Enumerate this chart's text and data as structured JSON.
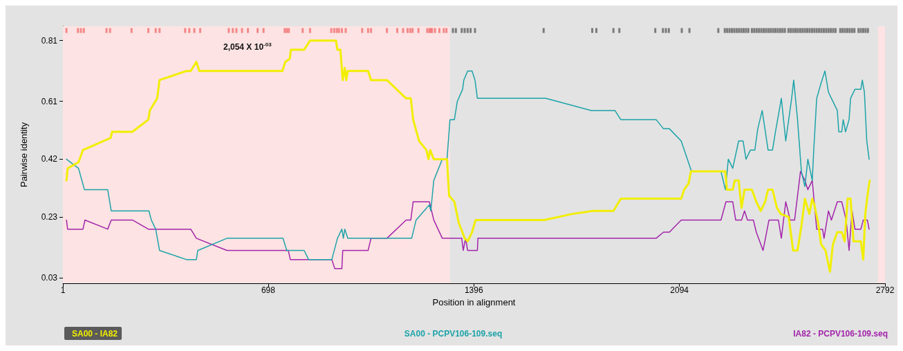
{
  "chart_data": {
    "type": "line",
    "xlabel": "Position in alignment",
    "ylabel": "Pairwise identity",
    "xlim": [
      1,
      2792
    ],
    "xticks": [
      1,
      698,
      1396,
      2094,
      2792
    ],
    "ylim": [
      0.012,
      0.857
    ],
    "yticks": [
      0.03,
      0.23,
      0.42,
      0.61,
      0.81
    ],
    "grid": false,
    "legend": "bottom",
    "line_style": "solid",
    "marker": "none",
    "annotations": [
      "2,054 X 10$^{-03}$"
    ],
    "bands": [
      {
        "axis": "x",
        "from": 1,
        "to": 1315,
        "color": "#fde3e3"
      },
      {
        "axis": "x",
        "from": 2768,
        "to": 2792,
        "color": "#fde3e3"
      }
    ],
    "series": [
      {
        "name": "SA00 - IA82",
        "color": "#f2ee00",
        "x": [
          13,
          17,
          54,
          69,
          163,
          168,
          237,
          291,
          296,
          321,
          329,
          420,
          435,
          454,
          464,
          746,
          756,
          771,
          775,
          820,
          840,
          928,
          933,
          943,
          951,
          958,
          963,
          968,
          1037,
          1047,
          1101,
          1166,
          1182,
          1190,
          1210,
          1235,
          1242,
          1248,
          1260,
          1305,
          1312,
          1330,
          1345,
          1365,
          1375,
          1390,
          1402,
          1635,
          1730,
          1800,
          1870,
          1895,
          2100,
          2110,
          2125,
          2133,
          2250,
          2255,
          2275,
          2282,
          2295,
          2305,
          2315,
          2325,
          2340,
          2355,
          2370,
          2385,
          2395,
          2410,
          2425,
          2438,
          2465,
          2480,
          2495,
          2508,
          2520,
          2535,
          2545,
          2552,
          2565,
          2575,
          2590,
          2605,
          2615,
          2630,
          2645,
          2655,
          2665,
          2675,
          2685,
          2710,
          2718,
          2725,
          2735,
          2740
        ],
        "values": [
          0.35,
          0.39,
          0.41,
          0.45,
          0.49,
          0.51,
          0.51,
          0.55,
          0.58,
          0.62,
          0.68,
          0.71,
          0.71,
          0.74,
          0.71,
          0.71,
          0.74,
          0.75,
          0.78,
          0.78,
          0.81,
          0.81,
          0.78,
          0.78,
          0.68,
          0.72,
          0.68,
          0.71,
          0.71,
          0.68,
          0.68,
          0.62,
          0.62,
          0.55,
          0.48,
          0.45,
          0.42,
          0.45,
          0.42,
          0.42,
          0.3,
          0.28,
          0.21,
          0.16,
          0.15,
          0.18,
          0.22,
          0.22,
          0.24,
          0.25,
          0.25,
          0.29,
          0.29,
          0.32,
          0.34,
          0.38,
          0.38,
          0.32,
          0.32,
          0.35,
          0.35,
          0.26,
          0.32,
          0.32,
          0.32,
          0.28,
          0.25,
          0.28,
          0.32,
          0.32,
          0.26,
          0.24,
          0.23,
          0.12,
          0.12,
          0.2,
          0.29,
          0.24,
          0.29,
          0.27,
          0.21,
          0.14,
          0.12,
          0.05,
          0.14,
          0.18,
          0.18,
          0.15,
          0.29,
          0.29,
          0.15,
          0.15,
          0.09,
          0.24,
          0.32,
          0.35
        ]
      },
      {
        "name": "SA00 - PCPV106-109.seq",
        "color": "#1ba3a8",
        "x": [
          13,
          54,
          74,
          153,
          165,
          293,
          301,
          316,
          329,
          420,
          454,
          459,
          558,
          748,
          761,
          820,
          835,
          914,
          933,
          948,
          953,
          958,
          968,
          1185,
          1200,
          1245,
          1250,
          1260,
          1289,
          1305,
          1315,
          1330,
          1340,
          1358,
          1362,
          1375,
          1390,
          1400,
          1408,
          1640,
          1795,
          1875,
          1895,
          2015,
          2040,
          2060,
          2100,
          2135,
          2235,
          2250,
          2260,
          2275,
          2295,
          2310,
          2320,
          2335,
          2350,
          2360,
          2375,
          2395,
          2410,
          2420,
          2440,
          2455,
          2475,
          2482,
          2495,
          2508,
          2520,
          2530,
          2545,
          2550,
          2560,
          2575,
          2588,
          2600,
          2610,
          2630,
          2635,
          2645,
          2650,
          2658,
          2670,
          2675,
          2690,
          2710,
          2715,
          2722,
          2730,
          2738
        ],
        "values": [
          0.42,
          0.39,
          0.32,
          0.32,
          0.25,
          0.25,
          0.22,
          0.19,
          0.12,
          0.09,
          0.09,
          0.12,
          0.16,
          0.16,
          0.12,
          0.12,
          0.09,
          0.09,
          0.16,
          0.19,
          0.16,
          0.19,
          0.16,
          0.16,
          0.22,
          0.27,
          0.25,
          0.35,
          0.42,
          0.42,
          0.55,
          0.55,
          0.61,
          0.65,
          0.68,
          0.71,
          0.71,
          0.68,
          0.62,
          0.62,
          0.58,
          0.58,
          0.55,
          0.55,
          0.52,
          0.52,
          0.48,
          0.38,
          0.38,
          0.32,
          0.42,
          0.39,
          0.48,
          0.48,
          0.42,
          0.45,
          0.45,
          0.52,
          0.58,
          0.45,
          0.45,
          0.51,
          0.62,
          0.48,
          0.62,
          0.68,
          0.55,
          0.38,
          0.33,
          0.42,
          0.35,
          0.45,
          0.62,
          0.67,
          0.71,
          0.64,
          0.62,
          0.58,
          0.51,
          0.51,
          0.55,
          0.51,
          0.55,
          0.62,
          0.65,
          0.65,
          0.68,
          0.64,
          0.48,
          0.42
        ]
      },
      {
        "name": "IA82 - PCPV106-109.seq",
        "color": "#a324ab",
        "x": [
          13,
          17,
          69,
          76,
          153,
          165,
          237,
          291,
          435,
          454,
          558,
          766,
          773,
          914,
          924,
          948,
          951,
          1037,
          1047,
          1101,
          1166,
          1182,
          1190,
          1245,
          1260,
          1289,
          1355,
          1360,
          1368,
          1375,
          1408,
          1410,
          2015,
          2040,
          2060,
          2100,
          2235,
          2252,
          2275,
          2285,
          2305,
          2315,
          2325,
          2345,
          2355,
          2378,
          2390,
          2398,
          2430,
          2440,
          2455,
          2470,
          2485,
          2505,
          2520,
          2530,
          2545,
          2560,
          2580,
          2585,
          2600,
          2610,
          2630,
          2645,
          2660,
          2670,
          2680,
          2690,
          2710,
          2718,
          2732,
          2738
        ],
        "values": [
          0.22,
          0.19,
          0.19,
          0.22,
          0.19,
          0.22,
          0.22,
          0.19,
          0.19,
          0.16,
          0.12,
          0.12,
          0.09,
          0.09,
          0.06,
          0.06,
          0.12,
          0.12,
          0.16,
          0.16,
          0.22,
          0.22,
          0.28,
          0.28,
          0.22,
          0.16,
          0.16,
          0.12,
          0.16,
          0.12,
          0.12,
          0.16,
          0.16,
          0.18,
          0.18,
          0.22,
          0.22,
          0.28,
          0.28,
          0.22,
          0.22,
          0.25,
          0.22,
          0.22,
          0.18,
          0.12,
          0.18,
          0.22,
          0.22,
          0.16,
          0.28,
          0.22,
          0.22,
          0.38,
          0.35,
          0.32,
          0.35,
          0.19,
          0.19,
          0.16,
          0.25,
          0.22,
          0.28,
          0.28,
          0.22,
          0.12,
          0.25,
          0.19,
          0.19,
          0.22,
          0.22,
          0.19
        ]
      },
      {
        "type": "scatter",
        "marker": "square",
        "color": "#f07070",
        "x": [
          13,
          52,
          62,
          72,
          149,
          161,
          234,
          291,
          316,
          329,
          416,
          430,
          447,
          467,
          564,
          578,
          590,
          609,
          629,
          662,
          682,
          754,
          761,
          768,
          815,
          840,
          912,
          922,
          931,
          938,
          948,
          961,
          1017,
          1037,
          1047,
          1101,
          1136,
          1156,
          1171,
          1180,
          1188,
          1208,
          1238,
          1245,
          1250,
          1254,
          1264,
          1279,
          1294,
          1303
        ],
        "values": [
          0.843,
          0.843,
          0.843,
          0.843,
          0.843,
          0.843,
          0.843,
          0.843,
          0.843,
          0.843,
          0.843,
          0.843,
          0.843,
          0.843,
          0.843,
          0.843,
          0.843,
          0.843,
          0.843,
          0.843,
          0.843,
          0.843,
          0.843,
          0.843,
          0.843,
          0.843,
          0.843,
          0.843,
          0.843,
          0.843,
          0.843,
          0.843,
          0.843,
          0.843,
          0.843,
          0.843,
          0.843,
          0.843,
          0.843,
          0.843,
          0.843,
          0.843,
          0.843,
          0.843,
          0.843,
          0.843,
          0.843,
          0.843,
          0.843,
          0.843
        ]
      },
      {
        "type": "scatter",
        "marker": "square",
        "color": "#606060",
        "x": [
          1325,
          1335,
          1355,
          1365,
          1375,
          1385,
          1400,
          1633,
          1798,
          1812,
          1870,
          1890,
          2012,
          2038,
          2048,
          2058,
          2102,
          2128,
          2226,
          2248,
          2256,
          2264,
          2272,
          2280,
          2288,
          2296,
          2304,
          2312,
          2320,
          2328,
          2340,
          2348,
          2356,
          2364,
          2372,
          2380,
          2388,
          2396,
          2404,
          2412,
          2420,
          2428,
          2436,
          2444,
          2452,
          2464,
          2472,
          2480,
          2488,
          2496,
          2504,
          2512,
          2520,
          2528,
          2536,
          2544,
          2552,
          2560,
          2568,
          2576,
          2584,
          2592,
          2600,
          2608,
          2616,
          2624,
          2640,
          2648,
          2656,
          2664,
          2672,
          2680,
          2688,
          2702,
          2710,
          2718,
          2726,
          2734
        ],
        "values": [
          0.843,
          0.843,
          0.843,
          0.843,
          0.843,
          0.843,
          0.843,
          0.843,
          0.843,
          0.843,
          0.843,
          0.843,
          0.843,
          0.843,
          0.843,
          0.843,
          0.843,
          0.843,
          0.843,
          0.843,
          0.843,
          0.843,
          0.843,
          0.843,
          0.843,
          0.843,
          0.843,
          0.843,
          0.843,
          0.843,
          0.843,
          0.843,
          0.843,
          0.843,
          0.843,
          0.843,
          0.843,
          0.843,
          0.843,
          0.843,
          0.843,
          0.843,
          0.843,
          0.843,
          0.843,
          0.843,
          0.843,
          0.843,
          0.843,
          0.843,
          0.843,
          0.843,
          0.843,
          0.843,
          0.843,
          0.843,
          0.843,
          0.843,
          0.843,
          0.843,
          0.843,
          0.843,
          0.843,
          0.843,
          0.843,
          0.843,
          0.843,
          0.843,
          0.843,
          0.843,
          0.843,
          0.843,
          0.843,
          0.843,
          0.843,
          0.843,
          0.843,
          0.843
        ]
      }
    ]
  }
}
